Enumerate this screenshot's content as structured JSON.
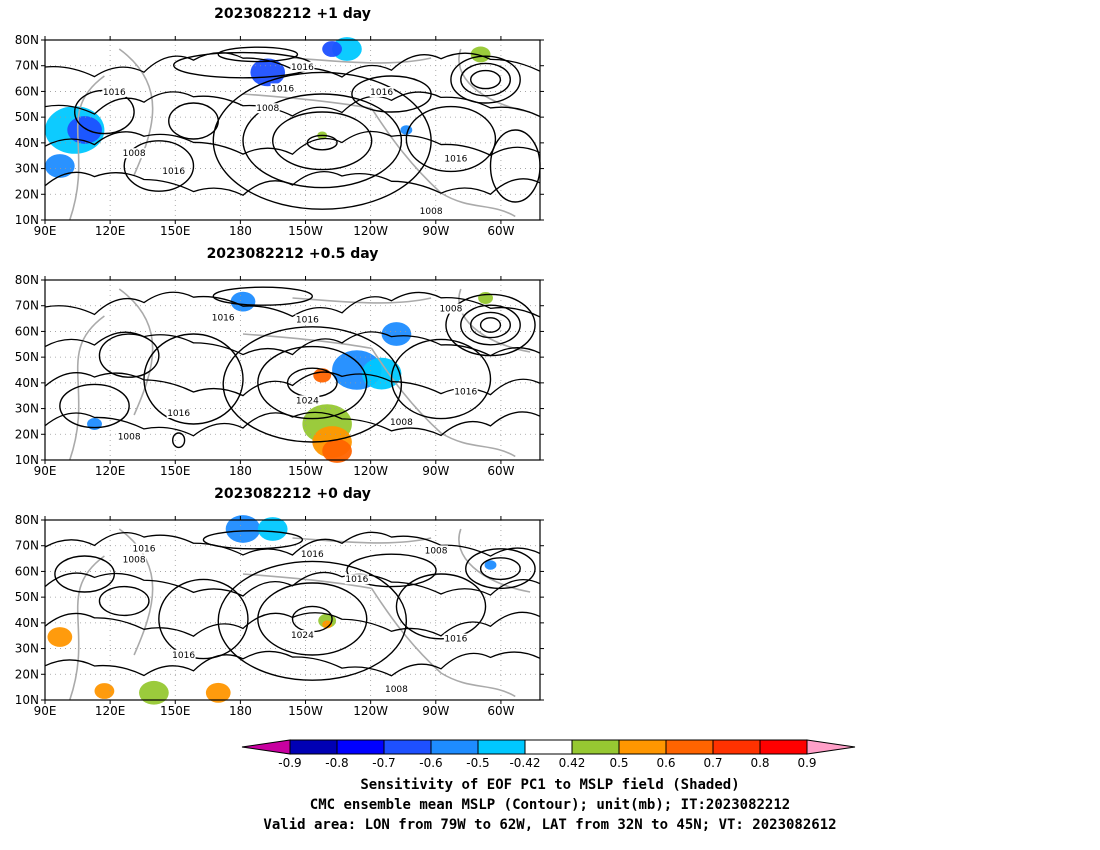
{
  "panels": [
    {
      "title": "2023082212  +1 day",
      "contour_labels": [
        "1016",
        "1016",
        "1016",
        "1008",
        "1016",
        "1008",
        "1016",
        "1016",
        "1008"
      ]
    },
    {
      "title": "2023082212  +0.5 day",
      "contour_labels": [
        "1016",
        "1016",
        "1008",
        "1024",
        "1016",
        "1016",
        "1008",
        "1008"
      ]
    },
    {
      "title": "2023082212  +0 day",
      "contour_labels": [
        "1016",
        "1008",
        "1016",
        "1016",
        "1008",
        "1024",
        "1016",
        "1016",
        "1008"
      ]
    }
  ],
  "lat_ticks": [
    "80N",
    "70N",
    "60N",
    "50N",
    "40N",
    "30N",
    "20N",
    "10N"
  ],
  "lon_ticks": [
    "90E",
    "120E",
    "150E",
    "180",
    "150W",
    "120W",
    "90W",
    "60W"
  ],
  "colorbar": {
    "labels": [
      "-0.9",
      "-0.8",
      "-0.7",
      "-0.6",
      "-0.5",
      "-0.42",
      "0.42",
      "0.5",
      "0.6",
      "0.7",
      "0.8",
      "0.9"
    ],
    "colors": [
      "#0000b4",
      "#0000ff",
      "#1e50ff",
      "#1e8cff",
      "#00c8ff",
      "#ffffff",
      "#96c832",
      "#ff9600",
      "#ff6400",
      "#ff3200",
      "#ff0000"
    ],
    "low_end_color": "#c800a0",
    "high_end_color": "#ffa0c8"
  },
  "caption": {
    "line1": "Sensitivity of EOF PC1 to MSLP field (Shaded)",
    "line2": "CMC ensemble mean MSLP (Contour); unit(mb); IT:2023082212",
    "line3": "Valid area: LON from 79W to 62W, LAT from 32N to 45N; VT: 2023082612"
  }
}
